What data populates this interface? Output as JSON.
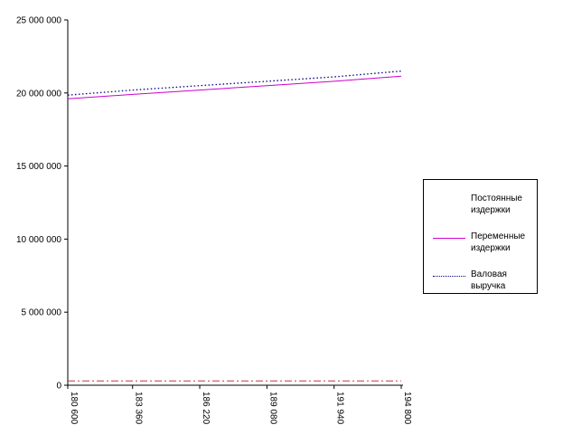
{
  "chart_data": {
    "type": "line",
    "title": "",
    "xlabel": "",
    "ylabel": "",
    "x": [
      180600,
      183360,
      186220,
      189080,
      191940,
      194800
    ],
    "x_tick_labels": [
      "180 600",
      "183 360",
      "186 220",
      "189 080",
      "191 940",
      "194 800"
    ],
    "y_tick_labels": [
      "0",
      "5 000 000",
      "10 000 000",
      "15 000 000",
      "20 000 000",
      "25 000 000"
    ],
    "ylim": [
      0,
      25000000
    ],
    "grid": false,
    "legend_position": "right",
    "series": [
      {
        "name": "Постоянные издержки",
        "values": [
          300000,
          300000,
          300000,
          300000,
          300000,
          300000
        ],
        "color": "#cc3333",
        "style": "dashdot"
      },
      {
        "name": "Переменные издержки",
        "values": [
          19600000,
          19900000,
          20200000,
          20500000,
          20800000,
          21150000
        ],
        "color": "#cc00cc",
        "style": "solid"
      },
      {
        "name": "Валовая выручка",
        "values": [
          19850000,
          20200000,
          20500000,
          20800000,
          21100000,
          21500000
        ],
        "color": "#000080",
        "style": "dotted"
      }
    ]
  },
  "legend": {
    "items": [
      {
        "line1": "Постоянные",
        "line2": "издержки"
      },
      {
        "line1": "Переменные",
        "line2": "издержки"
      },
      {
        "line1": "Валовая",
        "line2": "выручка"
      }
    ]
  }
}
